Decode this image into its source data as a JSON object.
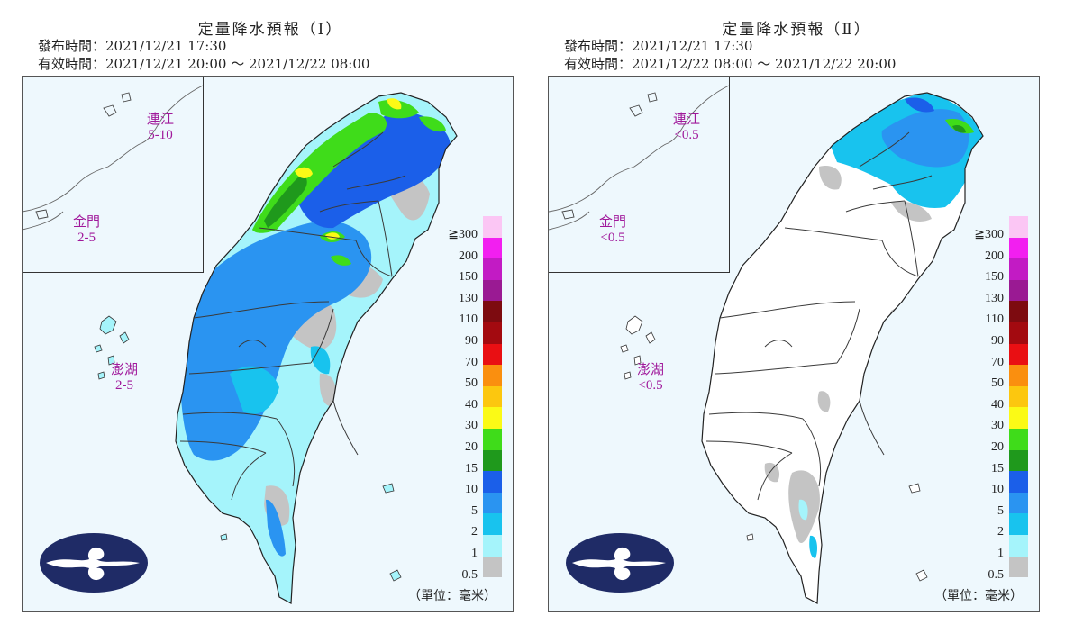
{
  "panels": [
    {
      "title": "定量降水預報（Ⅰ）",
      "issued": "發布時間：2021/12/21 17:30",
      "valid": "有效時間：2021/12/21 20:00 ～ 2021/12/22 08:00",
      "islands": {
        "matsu": {
          "name": "連江",
          "value": "5-10"
        },
        "kinmen": {
          "name": "金門",
          "value": "2-5"
        },
        "penghu": {
          "name": "澎湖",
          "value": "2-5"
        }
      },
      "unit": "（單位：毫米）"
    },
    {
      "title": "定量降水預報（Ⅱ）",
      "issued": "發布時間：2021/12/21 17:30",
      "valid": "有效時間：2021/12/22 08:00 ～ 2021/12/22 20:00",
      "islands": {
        "matsu": {
          "name": "連江",
          "value": "<0.5"
        },
        "kinmen": {
          "name": "金門",
          "value": "<0.5"
        },
        "penghu": {
          "name": "澎湖",
          "value": "<0.5"
        }
      },
      "unit": "（單位：毫米）"
    }
  ],
  "legend": [
    {
      "label": "≧300",
      "color": "#fbc6f4"
    },
    {
      "label": "200",
      "color": "#f21ff0"
    },
    {
      "label": "150",
      "color": "#c21bc4"
    },
    {
      "label": "130",
      "color": "#9a1a93"
    },
    {
      "label": "110",
      "color": "#7d0b10"
    },
    {
      "label": "90",
      "color": "#a30a10"
    },
    {
      "label": "70",
      "color": "#e90f13"
    },
    {
      "label": "50",
      "color": "#fa8f0f"
    },
    {
      "label": "40",
      "color": "#fcc70f"
    },
    {
      "label": "30",
      "color": "#fbfa16"
    },
    {
      "label": "20",
      "color": "#3fdc1a"
    },
    {
      "label": "15",
      "color": "#1f991c"
    },
    {
      "label": "10",
      "color": "#1b5fe9"
    },
    {
      "label": "5",
      "color": "#2a94f1"
    },
    {
      "label": "2",
      "color": "#18c3ee"
    },
    {
      "label": "1",
      "color": "#a5f4fb"
    },
    {
      "label": "0.5",
      "color": "#c4c4c4"
    }
  ]
}
